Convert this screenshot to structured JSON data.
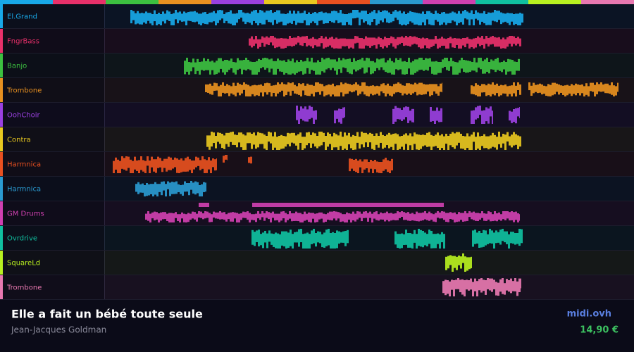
{
  "song": {
    "title": "Elle a fait un bébé toute seule",
    "artist": "Jean-Jacques Goldman",
    "site": "midi.ovh",
    "price": "14,90 €"
  },
  "tracks": [
    {
      "name": "El.Grand",
      "color": "#18a8e8"
    },
    {
      "name": "FngrBass",
      "color": "#e8306a"
    },
    {
      "name": "Banjo",
      "color": "#3cc040"
    },
    {
      "name": "Trombone",
      "color": "#e89020"
    },
    {
      "name": "OohChoir",
      "color": "#9a40e0"
    },
    {
      "name": "Contra",
      "color": "#e8c820"
    },
    {
      "name": "Harmnica",
      "color": "#e85020"
    },
    {
      "name": "Harmnica",
      "color": "#2a9ad0"
    },
    {
      "name": "GM Drums",
      "color": "#d040b0"
    },
    {
      "name": "Ovrdrive",
      "color": "#10c0a0"
    },
    {
      "name": "SquareLd",
      "color": "#b8f020"
    },
    {
      "name": "Trombone",
      "color": "#e878b0"
    }
  ]
}
